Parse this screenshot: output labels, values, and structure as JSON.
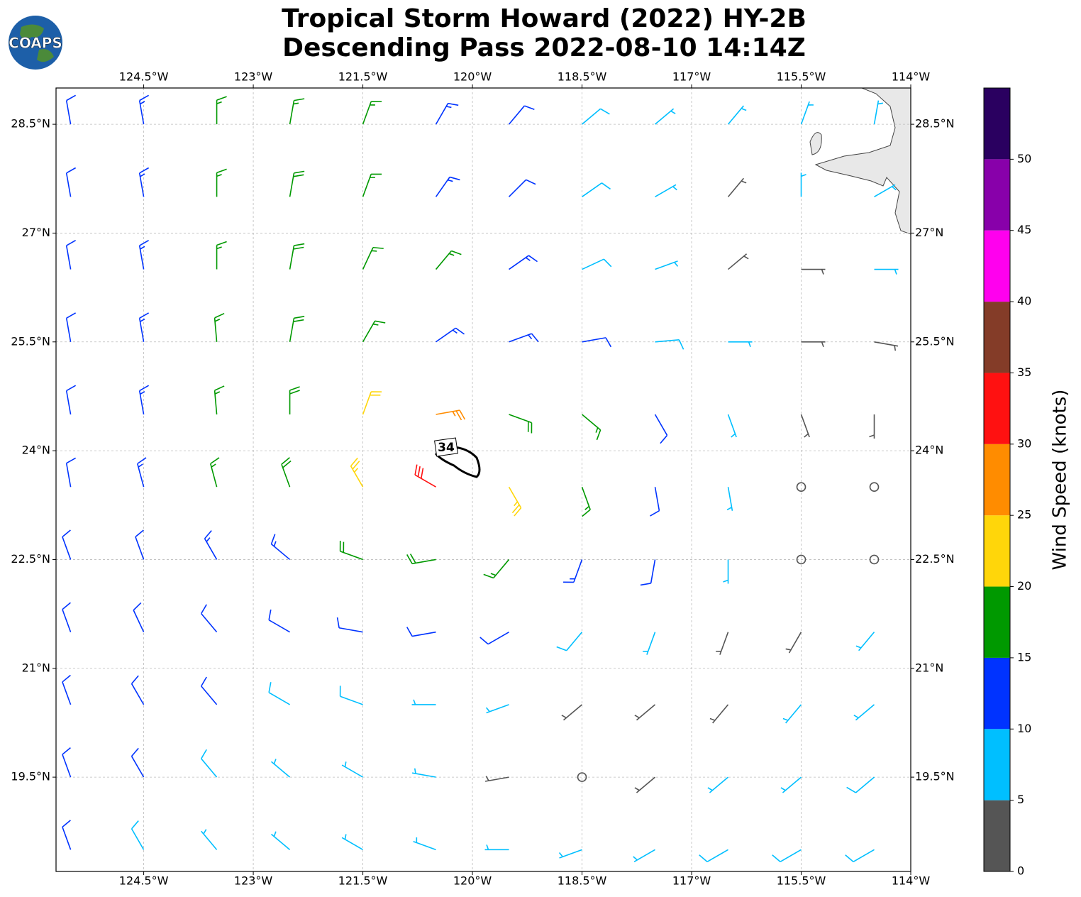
{
  "chart_data": {
    "type": "wind-barbs",
    "title": [
      "Tropical Storm Howard (2022) HY-2B",
      "Descending Pass 2022-08-10 14:14Z"
    ],
    "logo": "COAPS",
    "xlim": [
      -125.7,
      -114
    ],
    "ylim": [
      18.2,
      29
    ],
    "grid": true,
    "xticks": [
      {
        "value": -124.5,
        "label": "124.5°W"
      },
      {
        "value": -123,
        "label": "123°W"
      },
      {
        "value": -121.5,
        "label": "121.5°W"
      },
      {
        "value": -120,
        "label": "120°W"
      },
      {
        "value": -118.5,
        "label": "118.5°W"
      },
      {
        "value": -117,
        "label": "117°W"
      },
      {
        "value": -115.5,
        "label": "115.5°W"
      },
      {
        "value": -114,
        "label": "114°W"
      }
    ],
    "yticks": [
      {
        "value": 19.5,
        "label": "19.5°N"
      },
      {
        "value": 21,
        "label": "21°N"
      },
      {
        "value": 22.5,
        "label": "22.5°N"
      },
      {
        "value": 24,
        "label": "24°N"
      },
      {
        "value": 25.5,
        "label": "25.5°N"
      },
      {
        "value": 27,
        "label": "27°N"
      },
      {
        "value": 28.5,
        "label": "28.5°N"
      }
    ],
    "contour_label": 34,
    "colorbar": {
      "label": "Wind Speed (knots)",
      "lim": [
        0,
        55
      ],
      "bounds": [
        0,
        5,
        10,
        15,
        20,
        25,
        30,
        35,
        40,
        45,
        50,
        55
      ],
      "colors": [
        "#555555",
        "#00bfff",
        "#0033ff",
        "#009900",
        "#ffd60a",
        "#ff8c00",
        "#ff1111",
        "#843c28",
        "#ff00ee",
        "#8800aa",
        "#2a0060"
      ],
      "ticks": [
        0,
        5,
        10,
        15,
        20,
        25,
        30,
        35,
        40,
        45,
        50
      ]
    },
    "barbs": {
      "lons": [
        -125.5,
        -124.5,
        -123.5,
        -122.5,
        -121.5,
        -120.5,
        -119.5,
        -118.5,
        -117.5,
        -116.5,
        -115.5,
        -114.5
      ],
      "lats": [
        28.5,
        27.5,
        26.5,
        25.5,
        24.5,
        23.5,
        22.5,
        21.5,
        20.5,
        19.5,
        18.5
      ],
      "speed": [
        [
          12,
          13,
          16,
          17,
          16,
          13,
          12,
          8,
          7,
          6,
          6,
          5
        ],
        [
          11,
          13,
          17,
          18,
          17,
          14,
          12,
          8,
          7,
          4,
          5,
          5
        ],
        [
          11,
          14,
          17,
          18,
          17,
          15,
          13,
          9,
          7,
          3,
          4,
          5
        ],
        [
          11,
          14,
          17,
          18,
          16,
          14,
          13,
          11,
          8,
          6,
          3,
          3
        ],
        [
          11,
          13,
          16,
          19,
          22,
          25,
          19,
          15,
          11,
          7,
          4,
          3
        ],
        [
          11,
          13,
          15,
          18,
          23,
          30,
          24,
          16,
          11,
          6,
          2,
          2
        ],
        [
          11,
          12,
          13,
          14,
          19,
          19,
          15,
          13,
          10,
          5,
          2,
          2
        ],
        [
          11,
          12,
          12,
          12,
          12,
          12,
          11,
          9,
          7,
          4,
          3,
          6
        ],
        [
          11,
          11,
          10,
          9,
          8,
          7,
          6,
          4,
          3,
          4,
          5,
          7
        ],
        [
          11,
          10,
          8,
          7,
          7,
          6,
          3,
          2,
          4,
          6,
          7,
          8
        ],
        [
          11,
          9,
          7,
          7,
          7,
          7,
          5,
          6,
          7,
          8,
          8,
          8
        ]
      ],
      "dir": [
        [
          350,
          350,
          0,
          10,
          20,
          30,
          40,
          50,
          50,
          40,
          20,
          10
        ],
        [
          350,
          350,
          0,
          10,
          20,
          35,
          45,
          55,
          60,
          40,
          0,
          60
        ],
        [
          350,
          350,
          0,
          10,
          25,
          40,
          55,
          65,
          70,
          50,
          90,
          90
        ],
        [
          350,
          350,
          355,
          10,
          30,
          55,
          70,
          80,
          85,
          90,
          90,
          100
        ],
        [
          350,
          350,
          355,
          0,
          20,
          80,
          110,
          130,
          150,
          160,
          160,
          180
        ],
        [
          350,
          345,
          345,
          340,
          330,
          300,
          150,
          160,
          170,
          170,
          180,
          190
        ],
        [
          340,
          340,
          330,
          310,
          290,
          260,
          220,
          200,
          190,
          180,
          190,
          200
        ],
        [
          340,
          335,
          320,
          300,
          280,
          260,
          240,
          220,
          200,
          200,
          210,
          220
        ],
        [
          340,
          330,
          320,
          300,
          290,
          270,
          250,
          230,
          230,
          220,
          220,
          230
        ],
        [
          340,
          330,
          320,
          310,
          300,
          280,
          260,
          240,
          230,
          230,
          230,
          230
        ],
        [
          340,
          330,
          320,
          310,
          300,
          290,
          270,
          250,
          240,
          240,
          240,
          240
        ]
      ]
    }
  }
}
